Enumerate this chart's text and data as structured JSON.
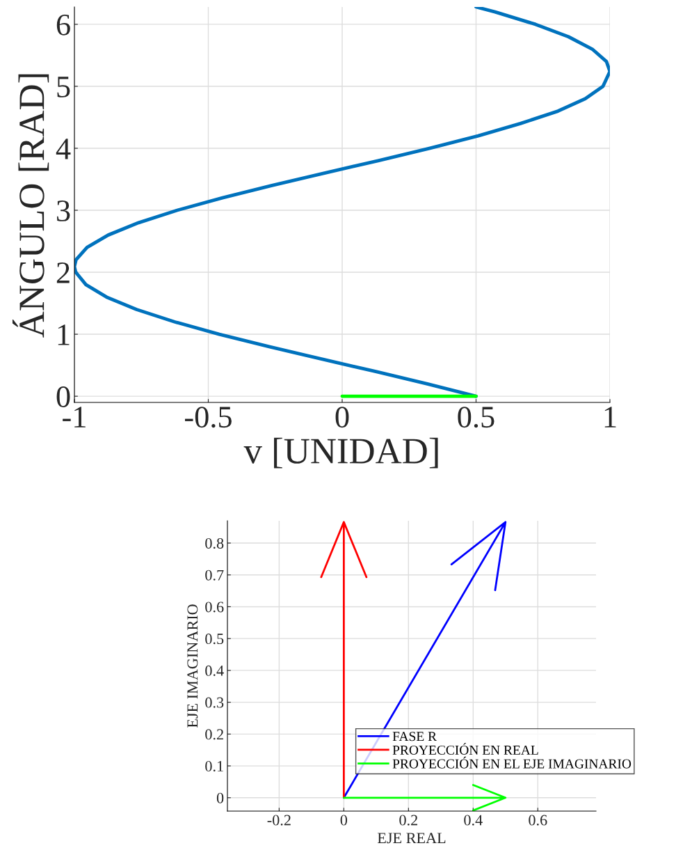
{
  "chart_data": [
    {
      "type": "line",
      "xlabel": "v [UNIDAD]",
      "ylabel": "ÁNGULO [RAD]",
      "xlim": [
        -1,
        1
      ],
      "ylim": [
        -0.1,
        6.28
      ],
      "xticks": [
        -1,
        -0.5,
        0,
        0.5,
        1
      ],
      "yticks": [
        0,
        1,
        2,
        3,
        4,
        5,
        6
      ],
      "grid": true,
      "series": [
        {
          "color": "#0072bd",
          "x": [
            0.5,
            0.318,
            0.123,
            -0.077,
            -0.273,
            -0.459,
            -0.626,
            -0.768,
            -0.88,
            -0.957,
            -0.995,
            -1,
            -0.994,
            -0.953,
            -0.874,
            -0.76,
            -0.616,
            -0.447,
            -0.262,
            -0.066,
            0.134,
            0.328,
            0.508,
            0.666,
            0.806,
            0.908,
            0.974,
            1,
            0.987,
            0.934,
            0.845,
            0.722,
            0.571,
            0.5
          ],
          "values": [
            0,
            0.2,
            0.4,
            0.6,
            0.8,
            1.0,
            1.2,
            1.4,
            1.6,
            1.8,
            2.0,
            2.09,
            2.2,
            2.4,
            2.6,
            2.8,
            3.0,
            3.2,
            3.4,
            3.6,
            3.8,
            4.0,
            4.2,
            4.4,
            4.6,
            4.8,
            5.0,
            5.24,
            5.4,
            5.6,
            5.8,
            6.0,
            6.2,
            6.28
          ]
        },
        {
          "color": "#00ff00",
          "x": [
            0,
            0.5
          ],
          "values": [
            0,
            0
          ]
        }
      ]
    },
    {
      "type": "line",
      "xlabel": "EJE REAL",
      "ylabel": "EJE IMAGINARIO",
      "xlim": [
        -0.36,
        0.78
      ],
      "ylim": [
        -0.042,
        0.87
      ],
      "xticks": [
        -0.2,
        0,
        0.2,
        0.4,
        0.6
      ],
      "yticks": [
        0,
        0.1,
        0.2,
        0.3,
        0.4,
        0.5,
        0.6,
        0.7,
        0.8
      ],
      "grid": true,
      "legend": "bottom right",
      "series": [
        {
          "name": "FASE R",
          "color": "#0000ff",
          "x": [
            0,
            0.5,
            0.333,
            0.5,
            0.468
          ],
          "values": [
            0,
            0.866,
            0.733,
            0.866,
            0.652
          ]
        },
        {
          "name": "PROYECCIÓN EN REAL",
          "color": "#ff0000",
          "x": [
            0,
            0,
            -0.07,
            0,
            0.07
          ],
          "values": [
            0,
            0.866,
            0.693,
            0.866,
            0.693
          ]
        },
        {
          "name": "PROYECCIÓN EN EL EJE IMAGINARIO",
          "color": "#00ff00",
          "x": [
            0,
            0.5,
            0.4,
            0.5,
            0.4
          ],
          "values": [
            0,
            0,
            0.04,
            0,
            -0.04
          ]
        }
      ]
    }
  ]
}
